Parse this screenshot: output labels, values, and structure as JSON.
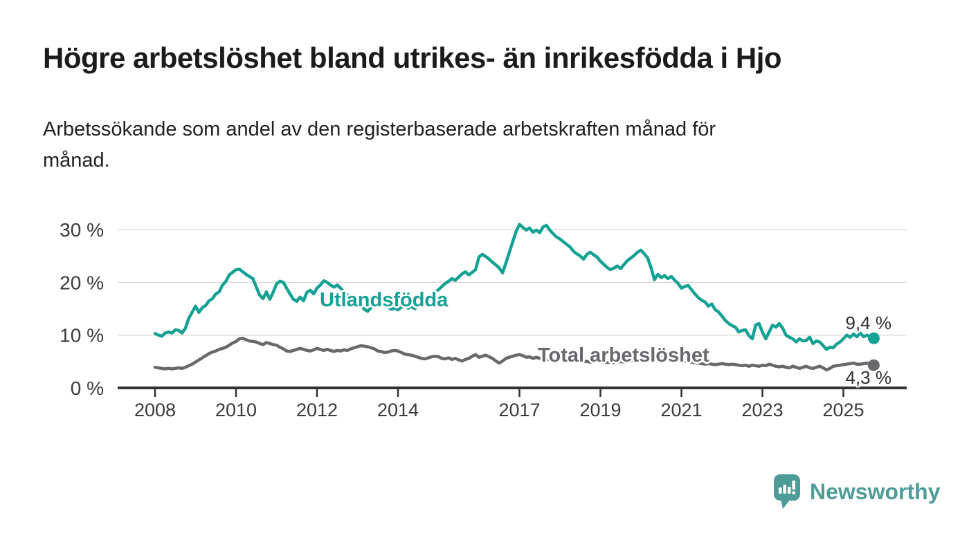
{
  "header": {
    "title": "Högre arbetslöshet bland utrikes- än inrikesfödda i Hjo",
    "subtitle_line1": "Arbetssökande som andel av den registerbaserade arbetskraften månad för",
    "subtitle_line2": "månad."
  },
  "footer": {
    "brand": "Newsworthy"
  },
  "style": {
    "accent_teal": "#16a195",
    "series_gray": "#68686d",
    "logo_teal": "#4e9c97",
    "grid_color": "#d9d9d9",
    "axis_color": "#333333",
    "axis_text_color": "#3a3a3c",
    "value_label_color": "#2c2e30"
  },
  "chart_data": {
    "type": "line",
    "title": "Högre arbetslöshet bland utrikes- än inrikesfödda i Hjo",
    "subtitle": "Arbetssökande som andel av den registerbaserade arbetskraften månad för månad.",
    "x_unit": "month",
    "x_start": "2008-01",
    "x_end": "2025-10",
    "grid": "horizontal-only",
    "legend": "inline-series-labels",
    "x_axis": {
      "tick_years": [
        2008,
        2010,
        2012,
        2014,
        2017,
        2019,
        2021,
        2023,
        2025
      ],
      "tick_labels": [
        "2008",
        "2010",
        "2012",
        "2014",
        "2017",
        "2019",
        "2021",
        "2023",
        "2025"
      ]
    },
    "y_axis": {
      "ticks": [
        0,
        10,
        20,
        30
      ],
      "tick_labels": [
        "0 %",
        "10 %",
        "20 %",
        "30 %"
      ],
      "range": [
        0,
        31.5
      ]
    },
    "series": [
      {
        "name": "Utlandsfödda",
        "slug": "utlandsfodda",
        "color": "#16a195",
        "end_value": 9.4,
        "end_label": "9,4 %",
        "values": [
          10.3,
          10.0,
          9.8,
          10.4,
          10.6,
          10.4,
          11.0,
          10.9,
          10.4,
          11.3,
          13.2,
          14.3,
          15.5,
          14.3,
          15.2,
          15.6,
          16.5,
          16.9,
          17.8,
          18.2,
          19.5,
          20.2,
          21.4,
          21.9,
          22.4,
          22.5,
          22.0,
          21.5,
          21.1,
          20.7,
          19.1,
          17.6,
          16.9,
          18.2,
          16.8,
          18.1,
          19.7,
          20.2,
          20.0,
          18.9,
          17.8,
          16.8,
          16.4,
          17.2,
          16.5,
          18.1,
          18.5,
          17.8,
          18.9,
          19.5,
          20.3,
          20.0,
          19.5,
          19.1,
          19.5,
          18.9,
          18.2,
          17.6,
          17.2,
          16.8,
          16.2,
          15.6,
          14.9,
          14.5,
          15.2,
          16.3,
          16.0,
          15.5,
          15.8,
          15.3,
          14.9,
          15.1,
          14.8,
          15.3,
          15.6,
          15.1,
          15.4,
          15.0,
          15.6,
          16.0,
          16.4,
          17.0,
          17.6,
          18.2,
          18.6,
          19.2,
          19.8,
          20.2,
          20.7,
          20.4,
          21.0,
          21.6,
          22.0,
          21.4,
          21.9,
          22.4,
          24.8,
          25.3,
          24.9,
          24.4,
          23.8,
          23.3,
          22.7,
          21.8,
          23.7,
          25.7,
          27.7,
          29.6,
          31.0,
          30.4,
          29.9,
          30.3,
          29.5,
          29.9,
          29.4,
          30.5,
          30.8,
          29.9,
          29.2,
          28.6,
          28.2,
          27.7,
          27.2,
          26.7,
          25.9,
          25.4,
          25.0,
          24.4,
          25.3,
          25.7,
          25.2,
          24.8,
          24.0,
          23.4,
          22.8,
          22.4,
          22.7,
          23.1,
          22.6,
          23.4,
          24.1,
          24.6,
          25.1,
          25.7,
          26.1,
          25.4,
          24.6,
          22.8,
          20.5,
          21.5,
          20.9,
          21.3,
          20.7,
          21.1,
          20.4,
          19.8,
          18.9,
          19.2,
          19.4,
          18.6,
          17.8,
          17.1,
          16.6,
          16.3,
          15.5,
          15.9,
          14.8,
          14.4,
          13.6,
          12.8,
          12.2,
          11.8,
          11.5,
          10.6,
          10.9,
          11.0,
          9.9,
          9.3,
          11.9,
          12.2,
          10.6,
          9.3,
          10.6,
          11.9,
          11.5,
          12.2,
          11.3,
          10.0,
          9.6,
          9.3,
          8.7,
          9.3,
          8.9,
          9.0,
          9.6,
          8.4,
          8.9,
          8.7,
          8.0,
          7.3,
          7.7,
          7.6,
          8.3,
          8.7,
          9.3,
          10.0,
          9.6,
          10.2,
          9.7,
          10.4,
          9.7,
          10.0,
          9.6,
          9.4
        ]
      },
      {
        "name": "Total arbetslöshet",
        "slug": "total-arbetsloshet",
        "color": "#68686d",
        "end_value": 4.3,
        "end_label": "4,3 %",
        "values": [
          3.9,
          3.8,
          3.7,
          3.6,
          3.7,
          3.6,
          3.7,
          3.8,
          3.7,
          3.9,
          4.2,
          4.5,
          4.9,
          5.3,
          5.7,
          6.1,
          6.5,
          6.8,
          7.0,
          7.3,
          7.5,
          7.7,
          8.1,
          8.5,
          8.8,
          9.3,
          9.4,
          9.1,
          8.9,
          8.8,
          8.7,
          8.4,
          8.2,
          8.6,
          8.4,
          8.2,
          8.1,
          7.7,
          7.4,
          7.0,
          6.9,
          7.1,
          7.3,
          7.5,
          7.3,
          7.1,
          7.0,
          7.2,
          7.5,
          7.3,
          7.1,
          7.3,
          7.1,
          6.9,
          7.1,
          7.0,
          7.2,
          7.1,
          7.4,
          7.6,
          7.8,
          8.0,
          7.9,
          7.8,
          7.6,
          7.4,
          7.0,
          6.9,
          6.7,
          6.8,
          7.0,
          7.1,
          7.0,
          6.7,
          6.4,
          6.3,
          6.2,
          6.0,
          5.8,
          5.6,
          5.5,
          5.7,
          5.9,
          6.0,
          5.9,
          5.6,
          5.5,
          5.7,
          5.4,
          5.6,
          5.3,
          5.1,
          5.4,
          5.6,
          6.0,
          6.3,
          5.8,
          6.0,
          6.2,
          5.9,
          5.6,
          5.1,
          4.7,
          5.1,
          5.6,
          5.8,
          6.0,
          6.2,
          6.3,
          6.1,
          5.8,
          5.9,
          5.6,
          5.8,
          5.6,
          5.5,
          5.4,
          5.3,
          5.4,
          5.5,
          5.4,
          5.3,
          5.2,
          5.3,
          5.2,
          5.1,
          5.0,
          5.1,
          5.0,
          4.9,
          5.0,
          5.1,
          5.0,
          4.9,
          4.8,
          4.9,
          4.8,
          4.9,
          5.0,
          4.9,
          5.0,
          5.1,
          5.2,
          5.3,
          5.4,
          5.5,
          5.7,
          5.9,
          6.0,
          5.9,
          5.8,
          5.7,
          5.6,
          5.5,
          5.4,
          5.3,
          5.2,
          5.1,
          5.0,
          4.9,
          4.8,
          4.7,
          4.6,
          4.5,
          4.6,
          4.5,
          4.4,
          4.5,
          4.6,
          4.5,
          4.4,
          4.5,
          4.4,
          4.3,
          4.2,
          4.3,
          4.1,
          4.3,
          4.2,
          4.1,
          4.3,
          4.2,
          4.5,
          4.3,
          4.1,
          4.0,
          4.1,
          3.9,
          3.8,
          4.1,
          3.9,
          3.7,
          3.9,
          4.1,
          3.8,
          3.7,
          3.9,
          4.1,
          3.8,
          3.4,
          3.7,
          4.1,
          4.2,
          4.3,
          4.4,
          4.5,
          4.6,
          4.7,
          4.5,
          4.5,
          4.6,
          4.7,
          4.5,
          4.3
        ]
      }
    ]
  }
}
